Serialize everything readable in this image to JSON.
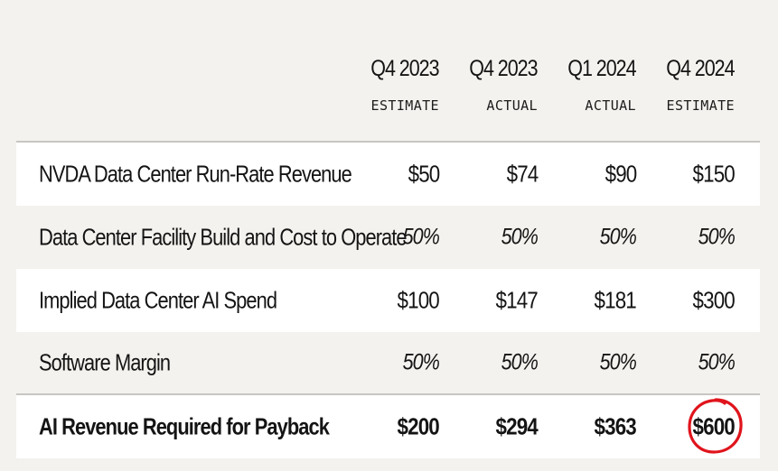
{
  "columns": [
    {
      "quarter": "Q4 2023",
      "type": "ESTIMATE"
    },
    {
      "quarter": "Q4 2023",
      "type": "ACTUAL"
    },
    {
      "quarter": "Q1 2024",
      "type": "ACTUAL"
    },
    {
      "quarter": "Q4 2024",
      "type": "ESTIMATE"
    }
  ],
  "rows": [
    {
      "label": "NVDA Data Center Run-Rate Revenue",
      "values": [
        "$50",
        "$74",
        "$90",
        "$150"
      ]
    },
    {
      "label": "Data Center Facility Build and Cost to Operate",
      "values": [
        "50%",
        "50%",
        "50%",
        "50%"
      ]
    },
    {
      "label": "Implied Data Center AI Spend",
      "values": [
        "$100",
        "$147",
        "$181",
        "$300"
      ]
    },
    {
      "label": "Software Margin",
      "values": [
        "50%",
        "50%",
        "50%",
        "50%"
      ]
    },
    {
      "label": "AI Revenue Required for Payback",
      "values": [
        "$200",
        "$294",
        "$363",
        "$600"
      ]
    }
  ],
  "highlight": {
    "row": 4,
    "column": 3,
    "color": "#e0141c"
  }
}
